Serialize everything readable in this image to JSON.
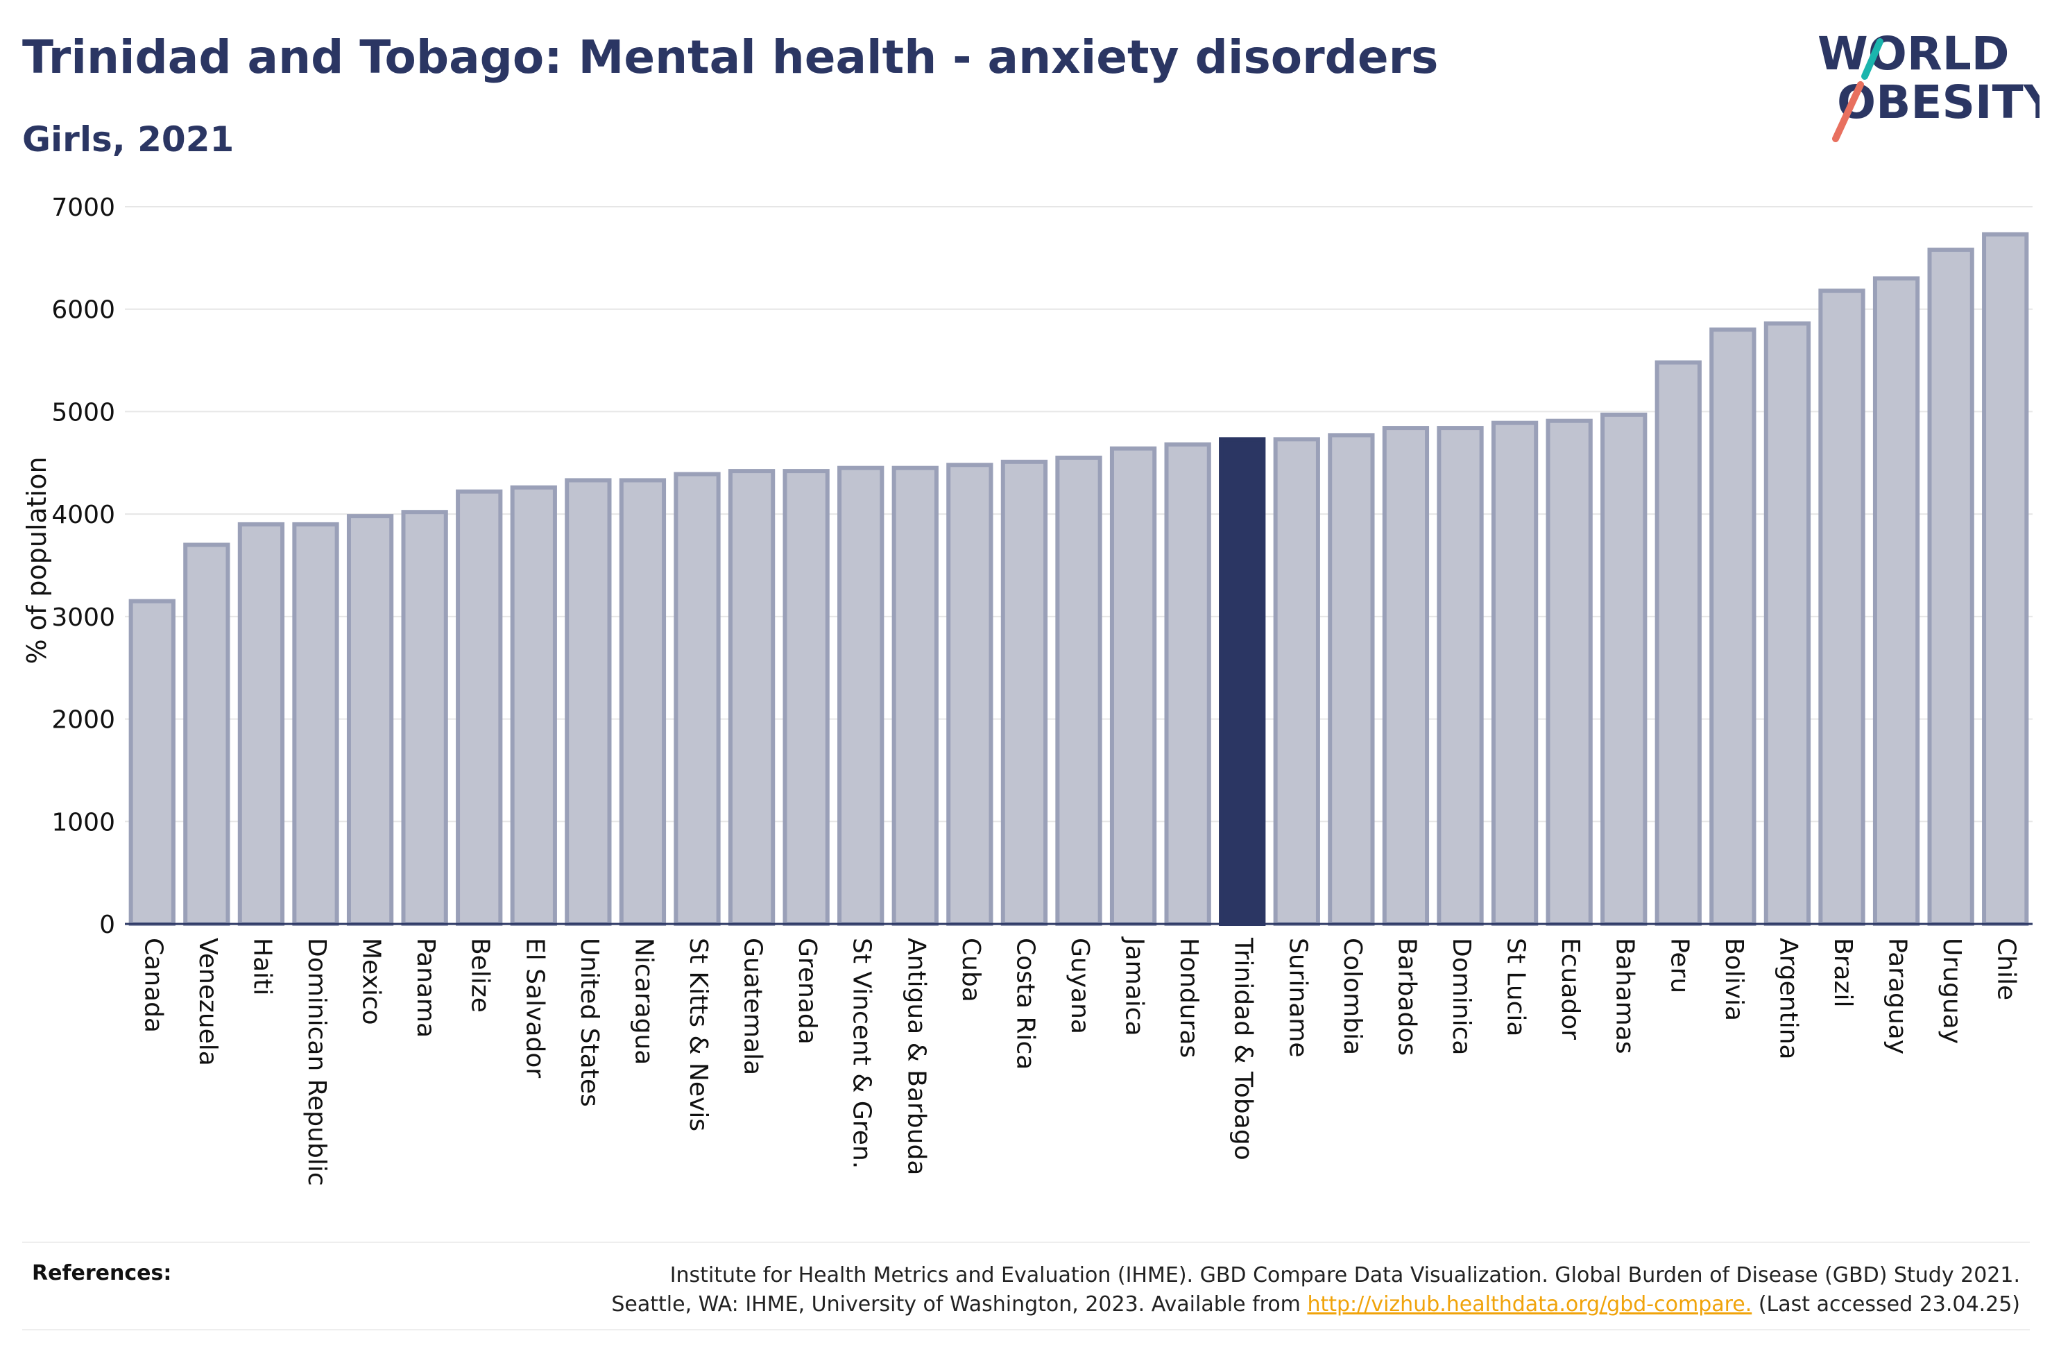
{
  "header": {
    "title": "Trinidad and Tobago: Mental health - anxiety disorders",
    "subtitle": "Girls, 2021"
  },
  "logo": {
    "line1": "WORLD",
    "line2": "OBESITY",
    "accent_colors": [
      "#1bb5ad",
      "#e8705f"
    ]
  },
  "colors": {
    "bar_default": "#c0c3d0",
    "bar_border": "#9aa0b8",
    "bar_highlight": "#2b3663",
    "text": "#2b3663",
    "link": "#f0a30a"
  },
  "chart_data": {
    "type": "bar",
    "title": "Trinidad and Tobago: Mental health - anxiety disorders",
    "subtitle": "Girls, 2021",
    "xlabel": "",
    "ylabel": "% of population",
    "ylim": [
      0,
      7000
    ],
    "yticks": [
      0,
      1000,
      2000,
      3000,
      4000,
      5000,
      6000,
      7000
    ],
    "grid": true,
    "highlight": "Trinidad & Tobago",
    "categories": [
      "Canada",
      "Venezuela",
      "Haiti",
      "Dominican Republic",
      "Mexico",
      "Panama",
      "Belize",
      "El Salvador",
      "United States",
      "Nicaragua",
      "St Kitts & Nevis",
      "Guatemala",
      "Grenada",
      "St Vincent & Gren.",
      "Antigua & Barbuda",
      "Cuba",
      "Costa Rica",
      "Guyana",
      "Jamaica",
      "Honduras",
      "Trinidad & Tobago",
      "Suriname",
      "Colombia",
      "Barbados",
      "Dominica",
      "St Lucia",
      "Ecuador",
      "Bahamas",
      "Peru",
      "Bolivia",
      "Argentina",
      "Brazil",
      "Paraguay",
      "Uruguay",
      "Chile"
    ],
    "values": [
      3150,
      3700,
      3900,
      3900,
      3980,
      4020,
      4220,
      4260,
      4330,
      4330,
      4390,
      4420,
      4420,
      4450,
      4450,
      4480,
      4510,
      4550,
      4640,
      4680,
      4730,
      4730,
      4770,
      4840,
      4840,
      4890,
      4910,
      4970,
      5480,
      5800,
      5860,
      6180,
      6300,
      6580,
      6730
    ]
  },
  "references": {
    "label": "References:",
    "line1": "Institute for Health Metrics and Evaluation (IHME). GBD Compare Data Visualization. Global Burden of Disease (GBD) Study 2021.",
    "line2_prefix": "Seattle, WA: IHME, University of Washington, 2023. Available from ",
    "link": "http://vizhub.healthdata.org/gbd-compare.",
    "line2_suffix": " (Last accessed 23.04.25)"
  }
}
